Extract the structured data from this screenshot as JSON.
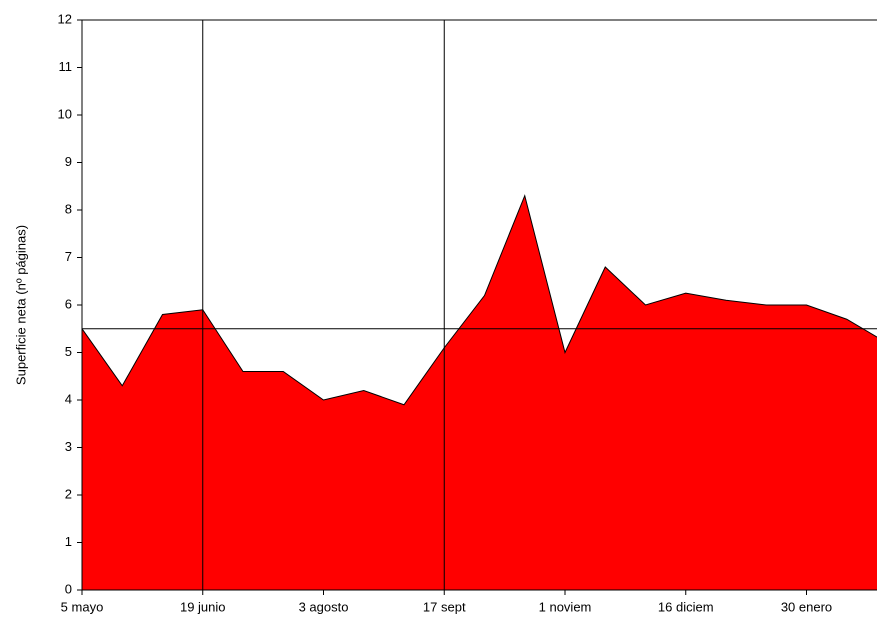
{
  "chart_data": {
    "type": "area",
    "y_label": "Superficie neta (nº páginas)",
    "categories": [
      "5 mayo",
      null,
      null,
      "19 junio",
      null,
      null,
      "3 agosto",
      null,
      null,
      "17 sept",
      null,
      null,
      "1 noviem",
      null,
      null,
      "16 diciem",
      null,
      null,
      "30 enero",
      null,
      null
    ],
    "series": [
      {
        "name": "Superficie neta",
        "color": "#ff0000",
        "values": [
          5.5,
          4.3,
          5.8,
          5.9,
          4.6,
          4.6,
          4.0,
          4.2,
          3.9,
          5.1,
          6.2,
          8.3,
          5.0,
          6.8,
          6.0,
          6.25,
          6.1,
          6.0,
          6.0,
          5.7,
          5.2
        ]
      }
    ],
    "ylim": [
      0,
      12
    ],
    "yticks": [
      0,
      1,
      2,
      3,
      4,
      5,
      6,
      7,
      8,
      9,
      10,
      11,
      12
    ],
    "reference_lines": {
      "y": 5.5,
      "x": [
        3,
        9
      ]
    }
  }
}
